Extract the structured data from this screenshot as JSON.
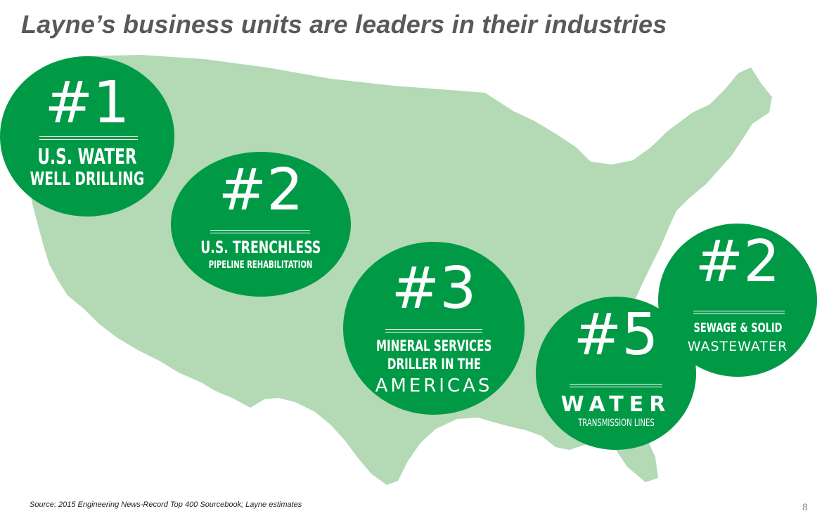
{
  "title": "Layne’s business units are leaders in their industries",
  "map": {
    "name": "united-states-map",
    "fill": "#b3d9b5"
  },
  "accent_color": "#009a47",
  "circles": [
    {
      "rank": "#1",
      "line1": "U.S. WATER",
      "line2": "WELL DRILLING"
    },
    {
      "rank": "#2",
      "line1": "U.S. TRENCHLESS",
      "line2": "PIPELINE  REHABILITATION"
    },
    {
      "rank": "#3",
      "line1": "MINERAL SERVICES",
      "line2": "DRILLER  IN  THE",
      "line3": "AMERICAS"
    },
    {
      "rank": "#5",
      "line1": "WATER",
      "line2": "TRANSMISSION LINES"
    },
    {
      "rank": "#2",
      "line1": "SEWAGE & SOLID",
      "line2": "WASTEWATER"
    }
  ],
  "source": "Source:  2015 Engineering News-Record Top 400 Sourcebook;  Layne estimates",
  "page_number": "8"
}
